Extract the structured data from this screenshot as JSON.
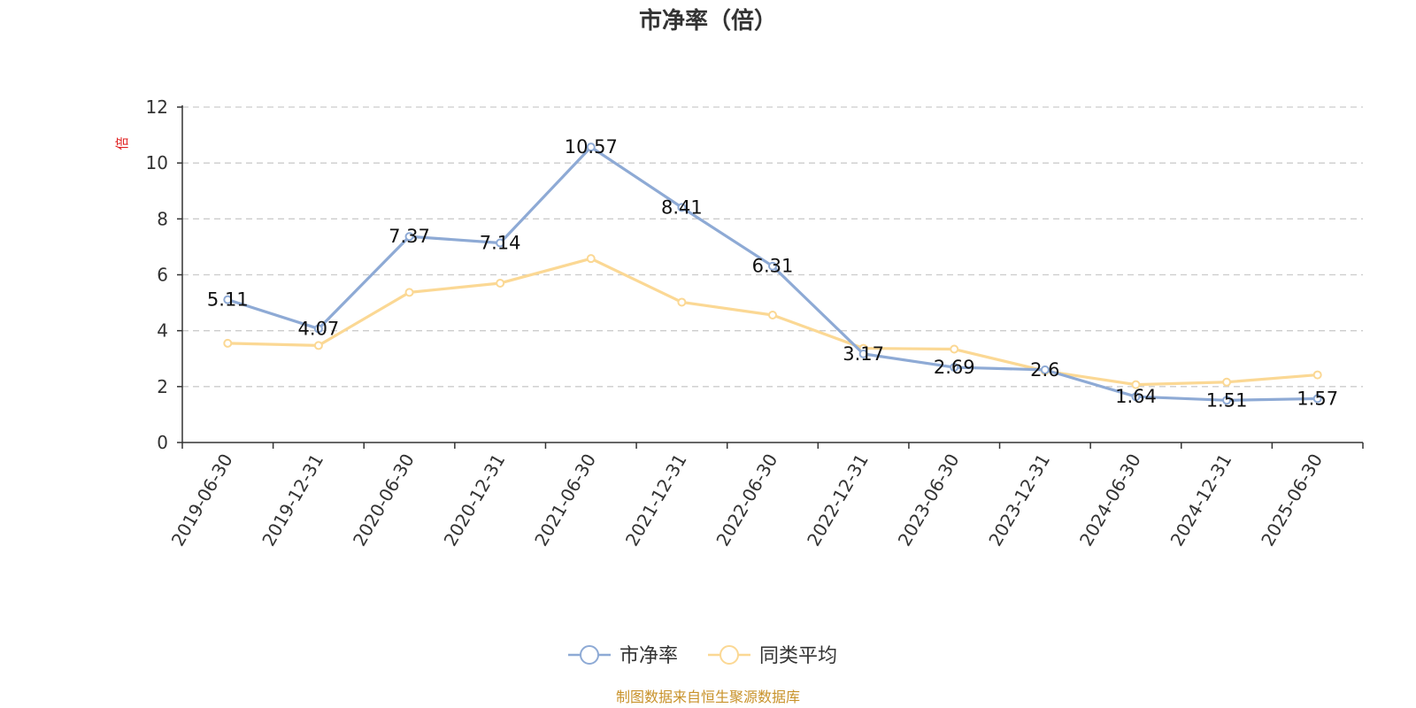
{
  "chart_data": {
    "type": "line",
    "title": "市净率（倍）",
    "ylabel": "倍",
    "ylim": [
      0,
      12
    ],
    "yticks": [
      0,
      2,
      4,
      6,
      8,
      10,
      12
    ],
    "grid": true,
    "legend_position": "bottom",
    "categories": [
      "2019-06-30",
      "2019-12-31",
      "2020-06-30",
      "2020-12-31",
      "2021-06-30",
      "2021-12-31",
      "2022-06-30",
      "2022-12-31",
      "2023-06-30",
      "2023-12-31",
      "2024-06-30",
      "2024-12-31",
      "2025-06-30"
    ],
    "series": [
      {
        "name": "市净率",
        "color": "#8eaad5",
        "show_labels": true,
        "values": [
          5.11,
          4.07,
          7.37,
          7.14,
          10.57,
          8.41,
          6.31,
          3.17,
          2.69,
          2.6,
          1.64,
          1.51,
          1.57
        ]
      },
      {
        "name": "同类平均",
        "color": "#fbd894",
        "show_labels": false,
        "values": [
          3.55,
          3.47,
          5.37,
          5.7,
          6.58,
          5.02,
          4.56,
          3.37,
          3.34,
          2.56,
          2.07,
          2.16,
          2.42
        ]
      }
    ]
  },
  "footer": {
    "source": "制图数据来自恒生聚源数据库"
  }
}
